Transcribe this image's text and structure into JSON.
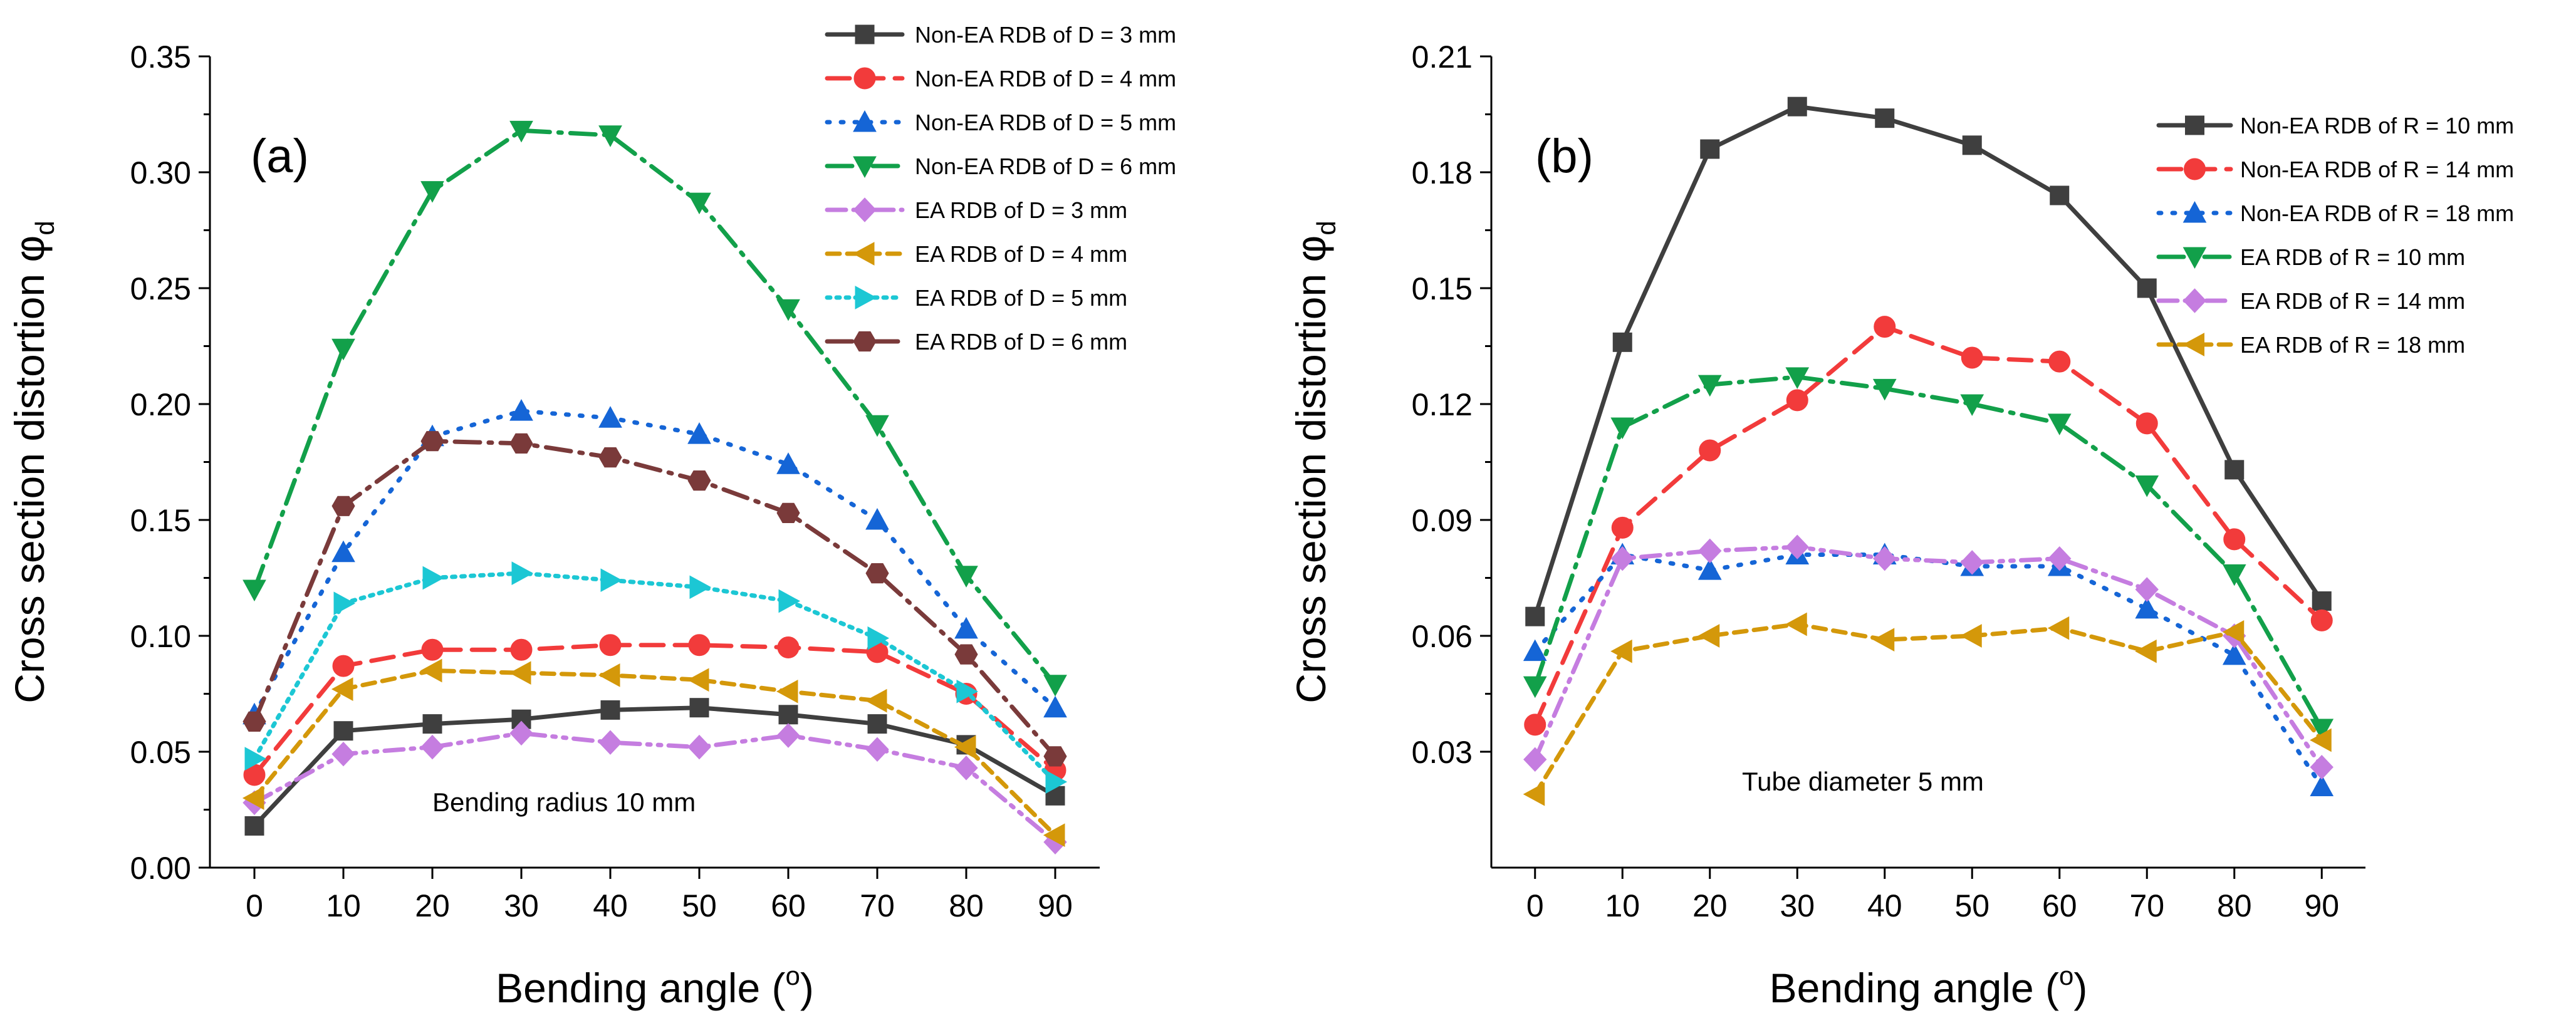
{
  "chart_data": [
    {
      "type": "line",
      "panel_label": "(a)",
      "annotation": "Bending radius 10 mm",
      "xlabel": "Bending angle (",
      "xlabel_sup": "o",
      "xlabel_end": ")",
      "ylabel": "Cross section distortion φ",
      "ylabel_sub": "d",
      "x": [
        0,
        10,
        20,
        30,
        40,
        50,
        60,
        70,
        80,
        90
      ],
      "xticks": [
        "0",
        "10",
        "20",
        "30",
        "40",
        "50",
        "60",
        "70",
        "80",
        "90"
      ],
      "yticks": [
        "0.00",
        "0.05",
        "0.10",
        "0.15",
        "0.20",
        "0.25",
        "0.30",
        "0.35"
      ],
      "xlim": [
        -5,
        95
      ],
      "ylim": [
        0,
        0.35
      ],
      "legend_position": "top-right",
      "series": [
        {
          "name": "Non-EA RDB of  D = 3 mm",
          "color": "#3f3f3f",
          "marker": "square",
          "dash": "solid",
          "values": [
            0.018,
            0.059,
            0.062,
            0.064,
            0.068,
            0.069,
            0.066,
            0.062,
            0.053,
            0.031
          ]
        },
        {
          "name": "Non-EA RDB of  D = 4 mm",
          "color": "#f23b3b",
          "marker": "circle",
          "dash": "dash",
          "values": [
            0.04,
            0.087,
            0.094,
            0.094,
            0.096,
            0.096,
            0.095,
            0.093,
            0.075,
            0.042
          ]
        },
        {
          "name": "Non-EA RDB of  D = 5 mm",
          "color": "#1565d6",
          "marker": "triangle-up",
          "dash": "dot",
          "values": [
            0.066,
            0.136,
            0.186,
            0.197,
            0.194,
            0.187,
            0.174,
            0.15,
            0.103,
            0.069
          ]
        },
        {
          "name": "Non-EA RDB of  D = 6 mm",
          "color": "#12a04a",
          "marker": "triangle-down",
          "dash": "dashdot",
          "values": [
            0.12,
            0.224,
            0.292,
            0.318,
            0.316,
            0.287,
            0.241,
            0.191,
            0.126,
            0.079
          ]
        },
        {
          "name": "EA RDB of  D = 3 mm",
          "color": "#c57de0",
          "marker": "diamond",
          "dash": "dashdotdot",
          "values": [
            0.028,
            0.049,
            0.052,
            0.058,
            0.054,
            0.052,
            0.057,
            0.051,
            0.043,
            0.011
          ]
        },
        {
          "name": "EA RDB of  D = 4 mm",
          "color": "#d4980a",
          "marker": "triangle-left",
          "dash": "shortdash",
          "values": [
            0.03,
            0.077,
            0.085,
            0.084,
            0.083,
            0.081,
            0.076,
            0.072,
            0.052,
            0.014
          ]
        },
        {
          "name": "EA RDB of  D = 5 mm",
          "color": "#1cc7d4",
          "marker": "triangle-right",
          "dash": "shortdot",
          "values": [
            0.047,
            0.114,
            0.125,
            0.127,
            0.124,
            0.121,
            0.115,
            0.099,
            0.076,
            0.037
          ]
        },
        {
          "name": "EA RDB of  D = 6 mm",
          "color": "#7a3a3a",
          "marker": "hexagon",
          "dash": "dashdot",
          "values": [
            0.063,
            0.156,
            0.184,
            0.183,
            0.177,
            0.167,
            0.153,
            0.127,
            0.092,
            0.048
          ]
        }
      ]
    },
    {
      "type": "line",
      "panel_label": "(b)",
      "annotation": "Tube diameter 5 mm",
      "xlabel": "Bending angle (",
      "xlabel_sup": "o",
      "xlabel_end": ")",
      "ylabel": "Cross section distortion φ",
      "ylabel_sub": "d",
      "x": [
        0,
        10,
        20,
        30,
        40,
        50,
        60,
        70,
        80,
        90
      ],
      "xticks": [
        "0",
        "10",
        "20",
        "30",
        "40",
        "50",
        "60",
        "70",
        "80",
        "90"
      ],
      "yticks": [
        "0.03",
        "0.06",
        "0.09",
        "0.12",
        "0.15",
        "0.18",
        "0.21"
      ],
      "xlim": [
        -5,
        95
      ],
      "ylim": [
        0.0,
        0.21
      ],
      "legend_position": "top-right",
      "series": [
        {
          "name": "Non-EA RDB of  R = 10 mm",
          "color": "#3f3f3f",
          "marker": "square",
          "dash": "solid",
          "values": [
            0.065,
            0.136,
            0.186,
            0.197,
            0.194,
            0.187,
            0.174,
            0.15,
            0.103,
            0.069
          ]
        },
        {
          "name": "Non-EA RDB of  R = 14 mm",
          "color": "#f23b3b",
          "marker": "circle",
          "dash": "dash",
          "values": [
            0.037,
            0.088,
            0.108,
            0.121,
            0.14,
            0.132,
            0.131,
            0.115,
            0.085,
            0.064
          ]
        },
        {
          "name": "Non-EA RDB of  R = 18 mm",
          "color": "#1565d6",
          "marker": "triangle-up",
          "dash": "dot",
          "values": [
            0.056,
            0.081,
            0.077,
            0.081,
            0.081,
            0.078,
            0.078,
            0.067,
            0.055,
            0.021
          ]
        },
        {
          "name": "EA RDB of  R = 10 mm",
          "color": "#12a04a",
          "marker": "triangle-down",
          "dash": "dashdot",
          "values": [
            0.047,
            0.114,
            0.125,
            0.127,
            0.124,
            0.12,
            0.115,
            0.099,
            0.076,
            0.036
          ]
        },
        {
          "name": "EA RDB of  R = 14 mm",
          "color": "#c57de0",
          "marker": "diamond",
          "dash": "dashdotdot",
          "values": [
            0.028,
            0.08,
            0.082,
            0.083,
            0.08,
            0.079,
            0.08,
            0.072,
            0.06,
            0.026
          ]
        },
        {
          "name": "EA RDB of  R = 18 mm",
          "color": "#d4980a",
          "marker": "triangle-left",
          "dash": "shortdash",
          "values": [
            0.019,
            0.056,
            0.06,
            0.063,
            0.059,
            0.06,
            0.062,
            0.056,
            0.061,
            0.033
          ]
        }
      ]
    }
  ]
}
